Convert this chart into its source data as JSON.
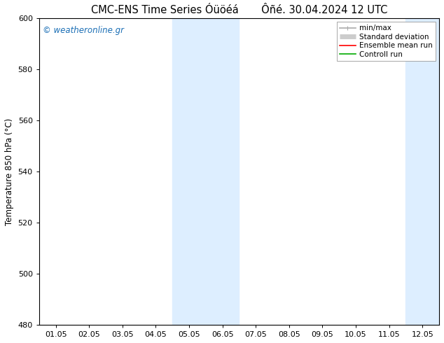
{
  "title": "CMC-ENS Time Series Óüöéá       Ôñé. 30.04.2024 12 UTC",
  "ylabel": "Temperature 850 hPa (°C)",
  "xlabel": "",
  "ylim": [
    480,
    600
  ],
  "yticks": [
    480,
    500,
    520,
    540,
    560,
    580,
    600
  ],
  "xtick_labels": [
    "01.05",
    "02.05",
    "03.05",
    "04.05",
    "05.05",
    "06.05",
    "07.05",
    "08.05",
    "09.05",
    "10.05",
    "11.05",
    "12.05"
  ],
  "xtick_positions": [
    0,
    1,
    2,
    3,
    4,
    5,
    6,
    7,
    8,
    9,
    10,
    11
  ],
  "xlim": [
    -0.5,
    11.5
  ],
  "shaded_bands": [
    {
      "xmin": 3.5,
      "xmax": 5.5,
      "color": "#ddeeff"
    },
    {
      "xmin": 10.5,
      "xmax": 12.5,
      "color": "#ddeeff"
    }
  ],
  "watermark": "© weatheronline.gr",
  "watermark_color": "#1a6eb5",
  "background_color": "#ffffff",
  "plot_bg_color": "#ffffff",
  "legend_items": [
    {
      "label": "min/max",
      "color": "#aaaaaa",
      "lw": 1.2
    },
    {
      "label": "Standard deviation",
      "color": "#cccccc",
      "lw": 5
    },
    {
      "label": "Ensemble mean run",
      "color": "#ff0000",
      "lw": 1.2
    },
    {
      "label": "Controll run",
      "color": "#00aa00",
      "lw": 1.2
    }
  ],
  "title_fontsize": 10.5,
  "axis_label_fontsize": 8.5,
  "tick_fontsize": 8,
  "legend_fontsize": 7.5,
  "watermark_fontsize": 8.5
}
